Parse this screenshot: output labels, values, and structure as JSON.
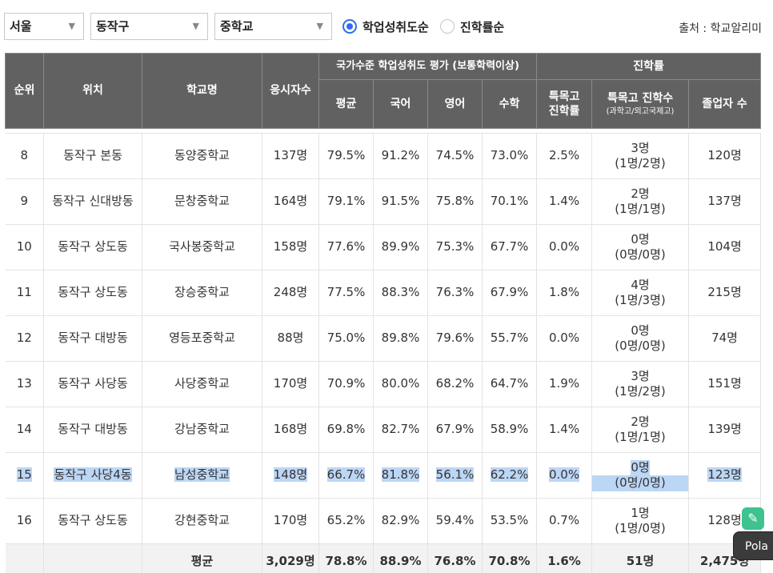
{
  "filters": {
    "region": "서울",
    "district": "동작구",
    "school_type": "중학교",
    "sort_options": [
      {
        "label": "학업성취도순",
        "selected": true
      },
      {
        "label": "진학률순",
        "selected": false
      }
    ],
    "source": "출처 : 학교알리미"
  },
  "table": {
    "headers": {
      "rank": "순위",
      "location": "위치",
      "school": "학교명",
      "examinees": "응시자수",
      "achievement_group": "국가수준 학업성취도 평가 (보통학력이상)",
      "avg": "평균",
      "korean": "국어",
      "english": "영어",
      "math": "수학",
      "advancement_group": "진학률",
      "special_rate": "특목고 진학률",
      "special_count": "특목고 진학수",
      "special_count_sub": "(과학고/외고국제고)",
      "graduates": "졸업자 수"
    },
    "rows": [
      {
        "rank": "8",
        "location": "동작구 본동",
        "school": "동양중학교",
        "examinees": "137명",
        "avg": "79.5%",
        "korean": "91.2%",
        "english": "74.5%",
        "math": "73.0%",
        "special_rate": "2.5%",
        "special_count": "3명",
        "special_detail": "(1명/2명)",
        "graduates": "120명"
      },
      {
        "rank": "9",
        "location": "동작구 신대방동",
        "school": "문창중학교",
        "examinees": "164명",
        "avg": "79.1%",
        "korean": "91.5%",
        "english": "75.8%",
        "math": "70.1%",
        "special_rate": "1.4%",
        "special_count": "2명",
        "special_detail": "(1명/1명)",
        "graduates": "137명"
      },
      {
        "rank": "10",
        "location": "동작구 상도동",
        "school": "국사봉중학교",
        "examinees": "158명",
        "avg": "77.6%",
        "korean": "89.9%",
        "english": "75.3%",
        "math": "67.7%",
        "special_rate": "0.0%",
        "special_count": "0명",
        "special_detail": "(0명/0명)",
        "graduates": "104명"
      },
      {
        "rank": "11",
        "location": "동작구 상도동",
        "school": "장승중학교",
        "examinees": "248명",
        "avg": "77.5%",
        "korean": "88.3%",
        "english": "76.3%",
        "math": "67.9%",
        "special_rate": "1.8%",
        "special_count": "4명",
        "special_detail": "(1명/3명)",
        "graduates": "215명"
      },
      {
        "rank": "12",
        "location": "동작구 대방동",
        "school": "영등포중학교",
        "examinees": "88명",
        "avg": "75.0%",
        "korean": "89.8%",
        "english": "79.6%",
        "math": "55.7%",
        "special_rate": "0.0%",
        "special_count": "0명",
        "special_detail": "(0명/0명)",
        "graduates": "74명"
      },
      {
        "rank": "13",
        "location": "동작구 사당동",
        "school": "사당중학교",
        "examinees": "170명",
        "avg": "70.9%",
        "korean": "80.0%",
        "english": "68.2%",
        "math": "64.7%",
        "special_rate": "1.9%",
        "special_count": "3명",
        "special_detail": "(1명/2명)",
        "graduates": "151명"
      },
      {
        "rank": "14",
        "location": "동작구 대방동",
        "school": "강남중학교",
        "examinees": "168명",
        "avg": "69.8%",
        "korean": "82.7%",
        "english": "67.9%",
        "math": "58.9%",
        "special_rate": "1.4%",
        "special_count": "2명",
        "special_detail": "(1명/1명)",
        "graduates": "139명"
      },
      {
        "rank": "15",
        "location": "동작구 사당4동",
        "school": "남성중학교",
        "examinees": "148명",
        "avg": "66.7%",
        "korean": "81.8%",
        "english": "56.1%",
        "math": "62.2%",
        "special_rate": "0.0%",
        "special_count": "0명",
        "special_detail": "(0명/0명)",
        "graduates": "123명",
        "highlighted": true
      },
      {
        "rank": "16",
        "location": "동작구 상도동",
        "school": "강현중학교",
        "examinees": "170명",
        "avg": "65.2%",
        "korean": "82.9%",
        "english": "59.4%",
        "math": "53.5%",
        "special_rate": "0.7%",
        "special_count": "1명",
        "special_detail": "(1명/0명)",
        "graduates": "128명"
      }
    ],
    "footer": {
      "label": "평균",
      "examinees": "3,029명",
      "avg": "78.8%",
      "korean": "88.9%",
      "english": "76.8%",
      "math": "70.8%",
      "special_rate": "1.6%",
      "special_count": "51명",
      "graduates": "2,475명"
    }
  },
  "overlay": {
    "widget_icon": "chat-bubble-icon",
    "tab_label": "Pola"
  }
}
